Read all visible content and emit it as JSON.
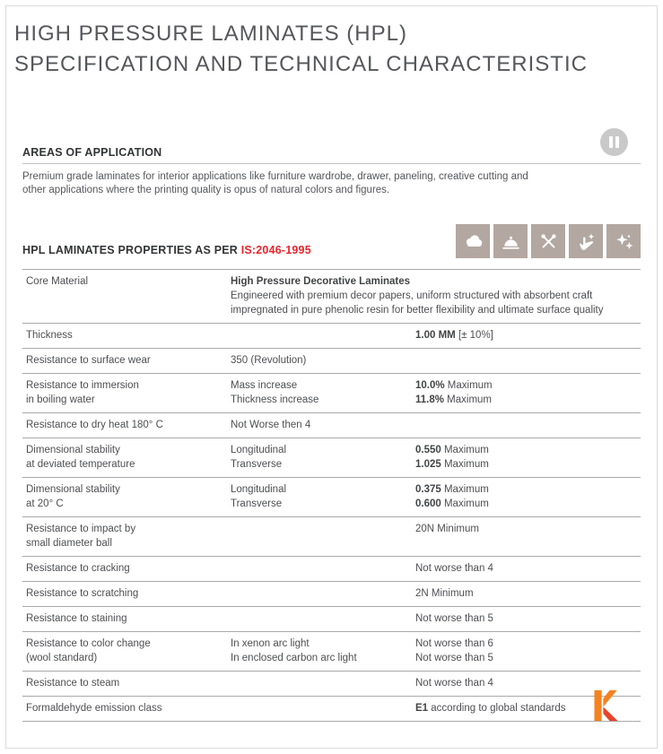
{
  "page": {
    "title_line1": "HIGH PRESSURE LAMINATES (HPL)",
    "title_line2": "SPECIFICATION AND TECHNICAL CHARACTERISTIC"
  },
  "application": {
    "heading": "AREAS OF APPLICATION",
    "body_line1": "Premium grade laminates for interior applications like furniture wardrobe, drawer, paneling, creative cutting and",
    "body_line2": "other applications where the printing quality is opus of natural colors and figures.",
    "corner_icon": "pause-circle-icon"
  },
  "properties": {
    "heading_prefix": "HPL LAMINATES PROPERTIES AS PER ",
    "heading_standard": "IS:2046-1995",
    "feature_icons": [
      "cloud-icon",
      "cloche-icon",
      "crossed-utensils-icon",
      "hand-sparkle-icon",
      "sparkles-icon"
    ]
  },
  "colors": {
    "accent_red": "#e8252c",
    "tile_taupe": "#b2a7a1",
    "text_gray": "#55565a",
    "logo_orange": "#f58220",
    "logo_red": "#e8432a"
  },
  "table": {
    "rows": [
      {
        "label": [
          {
            "t": "Core Material"
          }
        ],
        "wide": true,
        "mid": [
          {
            "b": "High Pressure Decorative Laminates"
          },
          {
            "t": "Engineered with premium decor papers, uniform structured with absorbent craft"
          },
          {
            "t": "impregnated in pure phenolic resin for better flexibility and ultimate surface quality"
          }
        ],
        "val": []
      },
      {
        "label": [
          {
            "t": "Thickness"
          }
        ],
        "mid": [],
        "val": [
          {
            "b": "1.00 MM",
            "t": "[± 10%]"
          }
        ]
      },
      {
        "label": [
          {
            "t": "Resistance to surface wear"
          }
        ],
        "mid": [
          {
            "t": "350 (Revolution)"
          }
        ],
        "val": []
      },
      {
        "label": [
          {
            "t": "Resistance to immersion"
          },
          {
            "t": "in boiling water"
          }
        ],
        "mid": [
          {
            "t": "Mass increase"
          },
          {
            "t": "Thickness increase"
          }
        ],
        "val": [
          {
            "b": "10.0%",
            "t": "Maximum"
          },
          {
            "b": "11.8%",
            "t": "Maximum"
          }
        ]
      },
      {
        "label": [
          {
            "t": "Resistance to dry heat 180° C"
          }
        ],
        "mid": [
          {
            "t": "Not Worse then 4"
          }
        ],
        "val": []
      },
      {
        "label": [
          {
            "t": "Dimensional stability"
          },
          {
            "t": "at deviated temperature"
          }
        ],
        "mid": [
          {
            "t": "Longitudinal"
          },
          {
            "t": "Transverse"
          }
        ],
        "val": [
          {
            "b": "0.550",
            "t": "Maximum"
          },
          {
            "b": "1.025",
            "t": "Maximum"
          }
        ]
      },
      {
        "label": [
          {
            "t": "Dimensional stability"
          },
          {
            "t": "at 20° C"
          }
        ],
        "mid": [
          {
            "t": "Longitudinal"
          },
          {
            "t": "Transverse"
          }
        ],
        "val": [
          {
            "b": "0.375",
            "t": "Maximum"
          },
          {
            "b": "0.600",
            "t": "Maximum"
          }
        ]
      },
      {
        "label": [
          {
            "t": "Resistance to impact by"
          },
          {
            "t": "small diameter ball"
          }
        ],
        "mid": [],
        "val": [
          {
            "t": "20N Minimum"
          }
        ]
      },
      {
        "label": [
          {
            "t": "Resistance to cracking"
          }
        ],
        "mid": [],
        "val": [
          {
            "t": "Not worse than 4"
          }
        ]
      },
      {
        "label": [
          {
            "t": "Resistance to scratching"
          }
        ],
        "mid": [],
        "val": [
          {
            "t": "2N Minimum"
          }
        ]
      },
      {
        "label": [
          {
            "t": "Resistance to staining"
          }
        ],
        "mid": [],
        "val": [
          {
            "t": "Not worse than 5"
          }
        ]
      },
      {
        "label": [
          {
            "t": "Resistance to color change"
          },
          {
            "t": "(wool standard)"
          }
        ],
        "mid": [
          {
            "t": "In xenon arc light"
          },
          {
            "t": "In enclosed carbon arc light"
          }
        ],
        "val": [
          {
            "t": "Not worse than 6"
          },
          {
            "t": "Not worse than 5"
          }
        ]
      },
      {
        "label": [
          {
            "t": "Resistance to steam"
          }
        ],
        "mid": [],
        "val": [
          {
            "t": "Not worse than 4"
          }
        ]
      },
      {
        "label": [
          {
            "t": "Formaldehyde emission class"
          }
        ],
        "mid": [],
        "val": [
          {
            "b": "E1",
            "t": "according to global standards"
          }
        ]
      }
    ]
  }
}
